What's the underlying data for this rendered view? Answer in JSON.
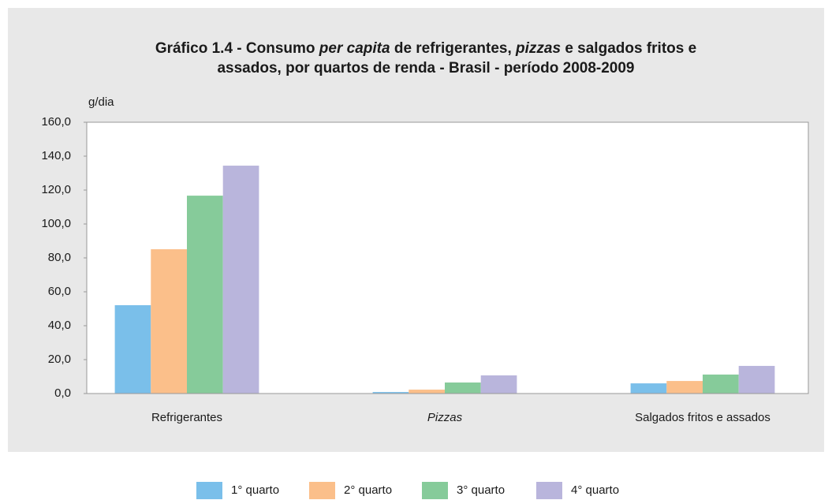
{
  "chart_data": {
    "type": "bar",
    "title": [
      [
        {
          "text": "Gráfico 1.4 - Consumo ",
          "italic": false
        },
        {
          "text": "per capita",
          "italic": true
        },
        {
          "text": " de refrigerantes, ",
          "italic": false
        },
        {
          "text": "pizzas",
          "italic": true
        },
        {
          "text": " e salgados fritos e",
          "italic": false
        }
      ],
      [
        {
          "text": "assados, por quartos de renda - Brasil - período 2008-2009",
          "italic": false
        }
      ]
    ],
    "y_label": "g/dia",
    "categories": [
      "Refrigerantes",
      "Pizzas",
      "Salgados fritos e assados"
    ],
    "italic_categories": [
      1
    ],
    "series": [
      {
        "name": "1° quarto",
        "color": "#7abfea",
        "values": [
          52.1,
          0.9,
          6.0
        ]
      },
      {
        "name": "2° quarto",
        "color": "#fbbf8a",
        "values": [
          85.1,
          2.3,
          7.4
        ]
      },
      {
        "name": "3° quarto",
        "color": "#86cb9a",
        "values": [
          116.7,
          6.5,
          11.2
        ]
      },
      {
        "name": "4° quarto",
        "color": "#b9b5dc",
        "values": [
          134.4,
          10.7,
          16.3
        ]
      }
    ],
    "ylim": [
      0,
      160
    ],
    "yticks": [
      {
        "value": 0,
        "label": "0,0"
      },
      {
        "value": 20,
        "label": "20,0"
      },
      {
        "value": 40,
        "label": "40,0"
      },
      {
        "value": 60,
        "label": "60,0"
      },
      {
        "value": 80,
        "label": "80,0"
      },
      {
        "value": 100,
        "label": "100,0"
      },
      {
        "value": 120,
        "label": "120,0"
      },
      {
        "value": 140,
        "label": "140,0"
      },
      {
        "value": 160,
        "label": "160,0"
      }
    ],
    "legend": "bottom"
  }
}
